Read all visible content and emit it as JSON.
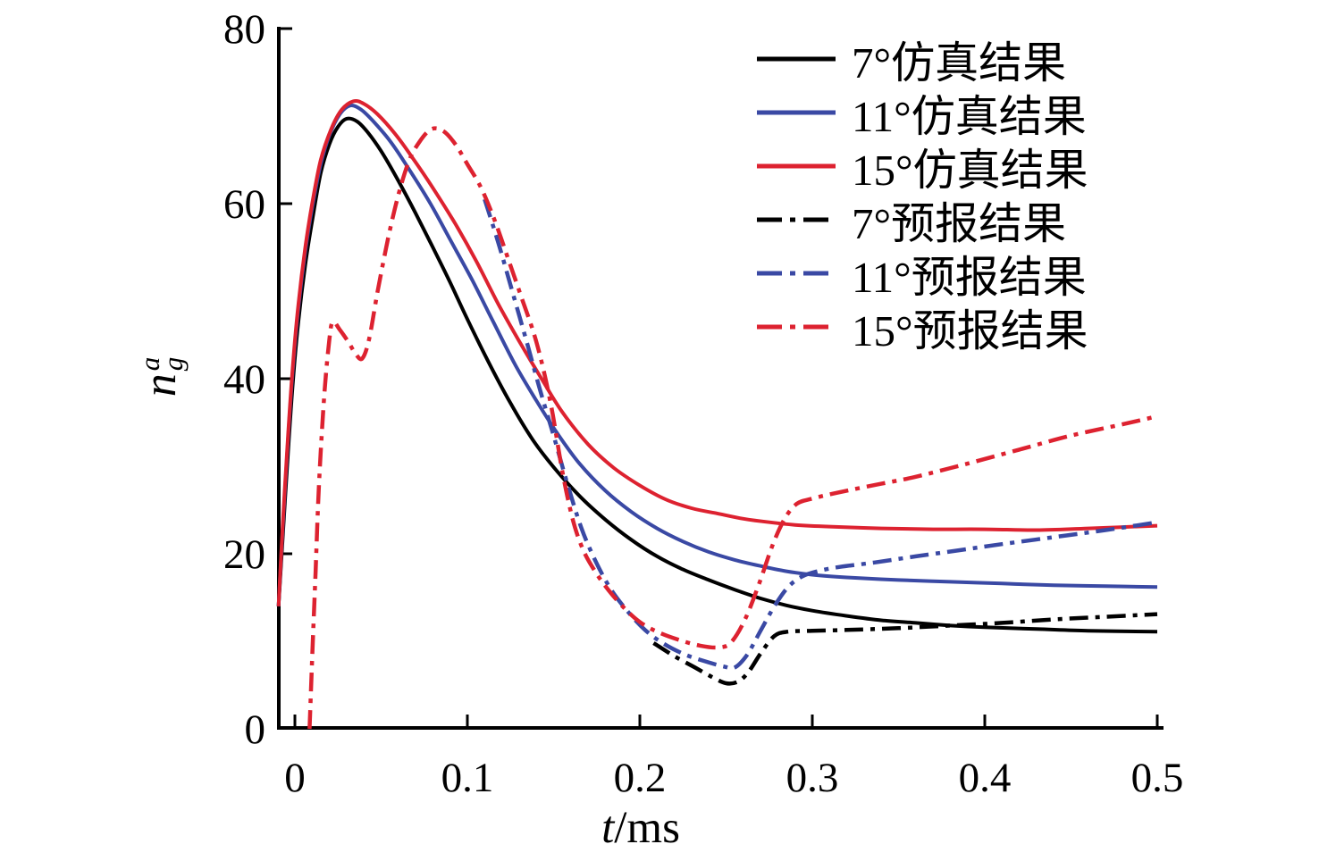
{
  "axes": {
    "x_tick_labels": [
      "0",
      "0.1",
      "0.2",
      "0.3",
      "0.4",
      "0.5"
    ],
    "y_tick_labels": [
      "0",
      "20",
      "40",
      "60",
      "80"
    ],
    "xlabel": {
      "italic": "t",
      "rest": "/ms"
    },
    "ylabel": {
      "base": "n",
      "sup": "a",
      "sub": "g"
    }
  },
  "chart_data": {
    "type": "line",
    "title": "",
    "xlabel": "t/ms",
    "ylabel": "n_g^a",
    "xlim": [
      -0.0095,
      0.5
    ],
    "ylim": [
      0,
      80
    ],
    "x_ticks": [
      0,
      0.1,
      0.2,
      0.3,
      0.4,
      0.5
    ],
    "y_ticks": [
      0,
      20,
      40,
      60,
      80
    ],
    "grid": false,
    "legend_position": "upper right",
    "series": [
      {
        "name": "7°仿真结果",
        "key": "sim-7",
        "color": "#000000",
        "style": "solid",
        "points": [
          [
            -0.0095,
            14
          ],
          [
            -0.007,
            22
          ],
          [
            -0.004,
            31.5
          ],
          [
            -0.001,
            40
          ],
          [
            0.002,
            46.5
          ],
          [
            0.006,
            53
          ],
          [
            0.01,
            58
          ],
          [
            0.015,
            63.5
          ],
          [
            0.02,
            66.8
          ],
          [
            0.025,
            68.8
          ],
          [
            0.03,
            69.7
          ],
          [
            0.036,
            69.4
          ],
          [
            0.042,
            68.2
          ],
          [
            0.05,
            66
          ],
          [
            0.06,
            62.6
          ],
          [
            0.07,
            58.9
          ],
          [
            0.08,
            55
          ],
          [
            0.09,
            51
          ],
          [
            0.1,
            46.8
          ],
          [
            0.112,
            42
          ],
          [
            0.125,
            37.2
          ],
          [
            0.138,
            33
          ],
          [
            0.15,
            29.9
          ],
          [
            0.165,
            26.6
          ],
          [
            0.18,
            23.9
          ],
          [
            0.195,
            21.6
          ],
          [
            0.21,
            19.7
          ],
          [
            0.225,
            18.2
          ],
          [
            0.24,
            17
          ],
          [
            0.255,
            15.9
          ],
          [
            0.27,
            14.9
          ],
          [
            0.285,
            14.1
          ],
          [
            0.3,
            13.5
          ],
          [
            0.32,
            12.9
          ],
          [
            0.34,
            12.4
          ],
          [
            0.36,
            12.1
          ],
          [
            0.38,
            11.8
          ],
          [
            0.4,
            11.6
          ],
          [
            0.43,
            11.4
          ],
          [
            0.46,
            11.2
          ],
          [
            0.5,
            11.1
          ]
        ]
      },
      {
        "name": "11°仿真结果",
        "key": "sim-11",
        "color": "#3a49a4",
        "style": "solid",
        "points": [
          [
            -0.0095,
            14
          ],
          [
            -0.007,
            23
          ],
          [
            -0.004,
            33
          ],
          [
            -0.001,
            41.5
          ],
          [
            0.002,
            48
          ],
          [
            0.006,
            54.5
          ],
          [
            0.01,
            59.5
          ],
          [
            0.015,
            64.5
          ],
          [
            0.02,
            67.8
          ],
          [
            0.026,
            70.2
          ],
          [
            0.032,
            71.2
          ],
          [
            0.038,
            70.8
          ],
          [
            0.045,
            69.5
          ],
          [
            0.055,
            67.2
          ],
          [
            0.065,
            64.3
          ],
          [
            0.078,
            60.2
          ],
          [
            0.09,
            55.9
          ],
          [
            0.103,
            51.2
          ],
          [
            0.115,
            46.5
          ],
          [
            0.128,
            41.5
          ],
          [
            0.14,
            37.5
          ],
          [
            0.152,
            33.8
          ],
          [
            0.165,
            30.3
          ],
          [
            0.18,
            27.2
          ],
          [
            0.195,
            24.8
          ],
          [
            0.21,
            22.9
          ],
          [
            0.225,
            21.4
          ],
          [
            0.24,
            20.2
          ],
          [
            0.255,
            19.3
          ],
          [
            0.27,
            18.6
          ],
          [
            0.285,
            18
          ],
          [
            0.3,
            17.6
          ],
          [
            0.32,
            17.3
          ],
          [
            0.35,
            17
          ],
          [
            0.38,
            16.8
          ],
          [
            0.41,
            16.6
          ],
          [
            0.44,
            16.4
          ],
          [
            0.47,
            16.3
          ],
          [
            0.5,
            16.2
          ]
        ]
      },
      {
        "name": "15°仿真结果",
        "key": "sim-15",
        "color": "#dd2230",
        "style": "solid",
        "points": [
          [
            -0.0095,
            14
          ],
          [
            -0.007,
            23.5
          ],
          [
            -0.004,
            33.5
          ],
          [
            -0.001,
            42
          ],
          [
            0.002,
            48.5
          ],
          [
            0.006,
            55
          ],
          [
            0.01,
            60
          ],
          [
            0.015,
            65
          ],
          [
            0.021,
            68.5
          ],
          [
            0.027,
            70.7
          ],
          [
            0.034,
            71.7
          ],
          [
            0.04,
            71.4
          ],
          [
            0.048,
            70.2
          ],
          [
            0.058,
            68
          ],
          [
            0.068,
            65.3
          ],
          [
            0.08,
            61.8
          ],
          [
            0.093,
            57.7
          ],
          [
            0.105,
            53.5
          ],
          [
            0.118,
            48.5
          ],
          [
            0.13,
            44.3
          ],
          [
            0.143,
            40
          ],
          [
            0.155,
            36.2
          ],
          [
            0.17,
            32.5
          ],
          [
            0.185,
            29.8
          ],
          [
            0.2,
            27.8
          ],
          [
            0.215,
            26.2
          ],
          [
            0.23,
            25.2
          ],
          [
            0.245,
            24.6
          ],
          [
            0.26,
            24
          ],
          [
            0.275,
            23.6
          ],
          [
            0.29,
            23.3
          ],
          [
            0.31,
            23.1
          ],
          [
            0.34,
            22.9
          ],
          [
            0.37,
            22.8
          ],
          [
            0.4,
            22.8
          ],
          [
            0.43,
            22.7
          ],
          [
            0.46,
            22.9
          ],
          [
            0.5,
            23.2
          ]
        ]
      },
      {
        "name": "7°预报结果",
        "key": "pred-7",
        "color": "#000000",
        "style": "dashdot",
        "points": [
          [
            0.208,
            9.8
          ],
          [
            0.22,
            8.3
          ],
          [
            0.232,
            7
          ],
          [
            0.242,
            5.9
          ],
          [
            0.25,
            5.2
          ],
          [
            0.257,
            5.4
          ],
          [
            0.263,
            6.5
          ],
          [
            0.27,
            8.6
          ],
          [
            0.278,
            10.6
          ],
          [
            0.286,
            11.1
          ],
          [
            0.3,
            11.2
          ],
          [
            0.32,
            11.3
          ],
          [
            0.35,
            11.5
          ],
          [
            0.38,
            11.8
          ],
          [
            0.41,
            12.1
          ],
          [
            0.44,
            12.5
          ],
          [
            0.47,
            12.8
          ],
          [
            0.5,
            13.1
          ]
        ]
      },
      {
        "name": "11°预报结果",
        "key": "pred-11",
        "color": "#3a49a4",
        "style": "dashdot",
        "points": [
          [
            0.11,
            60.5
          ],
          [
            0.118,
            55.5
          ],
          [
            0.126,
            50
          ],
          [
            0.134,
            44.5
          ],
          [
            0.142,
            38.8
          ],
          [
            0.15,
            33.5
          ],
          [
            0.158,
            28
          ],
          [
            0.166,
            23
          ],
          [
            0.174,
            19.3
          ],
          [
            0.183,
            16
          ],
          [
            0.193,
            13.4
          ],
          [
            0.203,
            11.3
          ],
          [
            0.214,
            9.7
          ],
          [
            0.226,
            8.5
          ],
          [
            0.238,
            7.7
          ],
          [
            0.249,
            7.1
          ],
          [
            0.255,
            7
          ],
          [
            0.262,
            8.4
          ],
          [
            0.27,
            11.2
          ],
          [
            0.278,
            14
          ],
          [
            0.286,
            16.2
          ],
          [
            0.294,
            17.4
          ],
          [
            0.303,
            18
          ],
          [
            0.316,
            18.5
          ],
          [
            0.336,
            19
          ],
          [
            0.36,
            19.7
          ],
          [
            0.385,
            20.4
          ],
          [
            0.41,
            21.1
          ],
          [
            0.44,
            21.9
          ],
          [
            0.47,
            22.7
          ],
          [
            0.5,
            23.6
          ]
        ]
      },
      {
        "name": "15°预报结果",
        "key": "pred-15",
        "color": "#dd2230",
        "style": "dashdot",
        "points": [
          [
            0.0085,
            0
          ],
          [
            0.01,
            8
          ],
          [
            0.012,
            18
          ],
          [
            0.014,
            28
          ],
          [
            0.017,
            38
          ],
          [
            0.02,
            44.5
          ],
          [
            0.022,
            46.5
          ],
          [
            0.026,
            45.6
          ],
          [
            0.031,
            44.2
          ],
          [
            0.035,
            42.9
          ],
          [
            0.039,
            42.3
          ],
          [
            0.043,
            44.5
          ],
          [
            0.048,
            50
          ],
          [
            0.054,
            56
          ],
          [
            0.06,
            61
          ],
          [
            0.066,
            64.8
          ],
          [
            0.072,
            67
          ],
          [
            0.079,
            68.5
          ],
          [
            0.086,
            68.3
          ],
          [
            0.093,
            66.8
          ],
          [
            0.1,
            64.5
          ],
          [
            0.108,
            61.8
          ],
          [
            0.116,
            58
          ],
          [
            0.124,
            53.5
          ],
          [
            0.131,
            49.5
          ],
          [
            0.14,
            44.2
          ],
          [
            0.148,
            37.5
          ],
          [
            0.155,
            29.5
          ],
          [
            0.161,
            24
          ],
          [
            0.167,
            20.5
          ],
          [
            0.174,
            18
          ],
          [
            0.182,
            15.8
          ],
          [
            0.191,
            13.8
          ],
          [
            0.2,
            12.2
          ],
          [
            0.21,
            11.1
          ],
          [
            0.222,
            10.2
          ],
          [
            0.235,
            9.5
          ],
          [
            0.246,
            9.3
          ],
          [
            0.253,
            9.9
          ],
          [
            0.261,
            12.5
          ],
          [
            0.269,
            16.5
          ],
          [
            0.277,
            21
          ],
          [
            0.284,
            24
          ],
          [
            0.291,
            25.7
          ],
          [
            0.3,
            26.3
          ],
          [
            0.315,
            27
          ],
          [
            0.34,
            28
          ],
          [
            0.36,
            28.8
          ],
          [
            0.39,
            30.3
          ],
          [
            0.42,
            31.9
          ],
          [
            0.45,
            33.5
          ],
          [
            0.48,
            34.8
          ],
          [
            0.5,
            35.7
          ]
        ]
      }
    ]
  }
}
